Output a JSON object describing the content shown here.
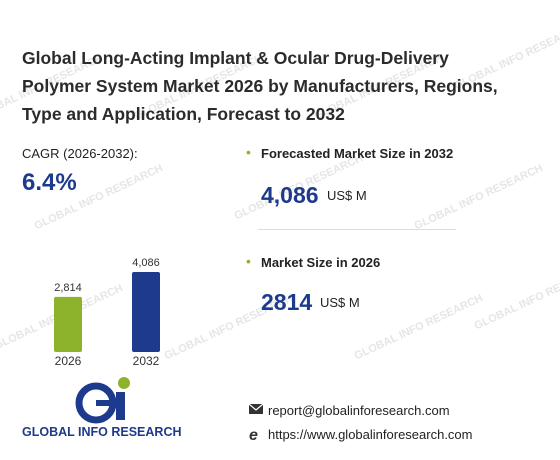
{
  "title": "Global Long-Acting Implant & Ocular Drug-Delivery Polymer System Market 2026 by Manufacturers, Regions, Type and Application, Forecast to 2032",
  "cagr": {
    "label": "CAGR (2026-2032):",
    "value": "6.4%"
  },
  "forecast": {
    "label": "Forecasted Market Size in 2032",
    "value": "4,086",
    "unit": "US$ M"
  },
  "current": {
    "label": "Market Size in 2026",
    "value": "2814",
    "unit": "US$ M"
  },
  "chart_data": {
    "type": "bar",
    "categories": [
      "2026",
      "2032"
    ],
    "values": [
      2814,
      4086
    ],
    "value_labels": [
      "2,814",
      "4,086"
    ],
    "colors": [
      "#8cb32b",
      "#1d3a8c"
    ]
  },
  "logo": {
    "text": "GLOBAL INFO RESEARCH"
  },
  "watermark": "GLOBAL INFO RESEARCH",
  "contact": {
    "email": "report@globalinforesearch.com",
    "website": "https://www.globalinforesearch.com"
  }
}
